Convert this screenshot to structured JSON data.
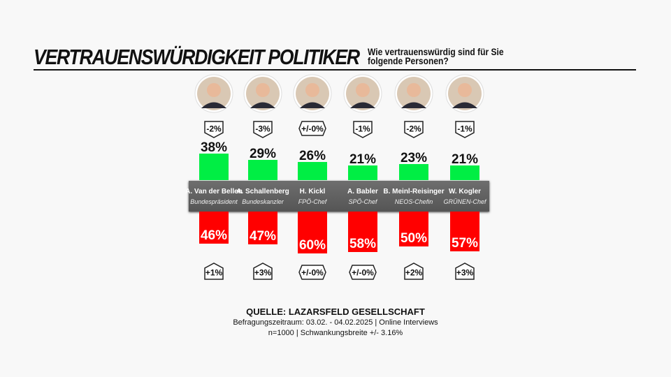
{
  "header": {
    "title": "VERTRAUENSWÜRDIGKEIT POLITIKER",
    "subtitle_line1": "Wie vertrauenswürdig sind für Sie",
    "subtitle_line2": "folgende Personen?"
  },
  "colors": {
    "trust": "#00ee44",
    "distrust": "#ff0000",
    "band": "#606060"
  },
  "chart_data": {
    "type": "bar",
    "categories": [
      "A. Van der Bellen",
      "A. Schallenberg",
      "H. Kickl",
      "A. Babler",
      "B. Meinl-Reisinger",
      "W. Kogler"
    ],
    "roles": [
      "Bundespräsident",
      "Bundeskanzler",
      "FPÖ-Chef",
      "SPÖ-Chef",
      "NEOS-Chefin",
      "GRÜNEN-Chef"
    ],
    "series": [
      {
        "values": [
          38,
          29,
          26,
          21,
          23,
          21
        ],
        "labels": [
          "38%",
          "29%",
          "26%",
          "21%",
          "23%",
          "21%"
        ],
        "changes": [
          "-2%",
          "-3%",
          "+/-0%",
          "-1%",
          "-2%",
          "-1%"
        ]
      },
      {
        "values": [
          46,
          47,
          60,
          58,
          50,
          57
        ],
        "labels": [
          "46%",
          "47%",
          "60%",
          "58%",
          "50%",
          "57%"
        ],
        "changes": [
          "+1%",
          "+3%",
          "+/-0%",
          "+/-0%",
          "+2%",
          "+3%"
        ]
      }
    ]
  },
  "source": {
    "title": "QUELLE: LAZARSFELD GESELLSCHAFT",
    "line1": "Befragungszeitraum: 03.02. - 04.02.2025 | Online Interviews",
    "line2": "n=1000  |  Schwankungsbreite +/- 3.16%"
  }
}
